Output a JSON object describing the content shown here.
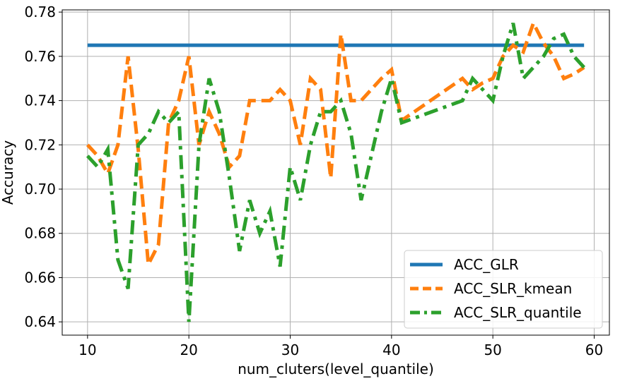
{
  "chart_data": {
    "type": "line",
    "xlabel": "num_cluters(level_quantile)",
    "ylabel": "Accuracy",
    "xlim": [
      7.5,
      61.5
    ],
    "ylim": [
      0.634,
      0.781
    ],
    "xticks": [
      10,
      20,
      30,
      40,
      50,
      60
    ],
    "yticks": [
      0.64,
      0.66,
      0.68,
      0.7,
      0.72,
      0.74,
      0.76,
      0.78
    ],
    "xtick_labels": [
      "10",
      "20",
      "30",
      "40",
      "50",
      "60"
    ],
    "ytick_labels": [
      "0.64",
      "0.66",
      "0.68",
      "0.70",
      "0.72",
      "0.74",
      "0.76",
      "0.78"
    ],
    "grid": true,
    "legend_position": "bottom-right",
    "series": [
      {
        "name": "ACC_GLR",
        "color": "#1f77b4",
        "style": "solid",
        "x": [
          10,
          59
        ],
        "y": [
          0.765,
          0.765
        ]
      },
      {
        "name": "ACC_SLR_kmean",
        "color": "#ff7f0e",
        "style": "dashed",
        "x": [
          10,
          11,
          12,
          13,
          14,
          15,
          16,
          17,
          18,
          19,
          20,
          21,
          22,
          23,
          24,
          25,
          26,
          27,
          28,
          29,
          30,
          31,
          32,
          33,
          34,
          35,
          36,
          37,
          38,
          39,
          40,
          41,
          47,
          48,
          49,
          50,
          51,
          52,
          53,
          54,
          55,
          56,
          57,
          58,
          59
        ],
        "y": [
          0.72,
          0.715,
          0.707,
          0.72,
          0.76,
          0.718,
          0.666,
          0.675,
          0.73,
          0.74,
          0.76,
          0.72,
          0.735,
          0.725,
          0.71,
          0.715,
          0.74,
          0.74,
          0.74,
          0.745,
          0.74,
          0.72,
          0.75,
          0.745,
          0.705,
          0.77,
          0.74,
          0.74,
          0.745,
          0.75,
          0.754,
          0.731,
          0.75,
          0.745,
          0.748,
          0.75,
          0.76,
          0.765,
          0.762,
          0.775,
          0.766,
          0.76,
          0.75,
          0.752,
          0.755
        ]
      },
      {
        "name": "ACC_SLR_quantile",
        "color": "#2ca02c",
        "style": "dashdot",
        "x": [
          10,
          11,
          12,
          13,
          14,
          15,
          16,
          17,
          18,
          19,
          20,
          21,
          22,
          23,
          24,
          25,
          26,
          27,
          28,
          29,
          30,
          31,
          32,
          33,
          34,
          35,
          36,
          37,
          38,
          39,
          40,
          41,
          47,
          48,
          49,
          50,
          51,
          52,
          53,
          54,
          55,
          56,
          57,
          58,
          59
        ],
        "y": [
          0.715,
          0.71,
          0.718,
          0.668,
          0.655,
          0.72,
          0.725,
          0.735,
          0.73,
          0.735,
          0.64,
          0.72,
          0.75,
          0.735,
          0.705,
          0.672,
          0.695,
          0.68,
          0.69,
          0.665,
          0.71,
          0.695,
          0.72,
          0.735,
          0.735,
          0.74,
          0.725,
          0.695,
          0.715,
          0.735,
          0.75,
          0.73,
          0.74,
          0.75,
          0.745,
          0.74,
          0.76,
          0.775,
          0.75,
          0.755,
          0.76,
          0.768,
          0.77,
          0.76,
          0.755
        ]
      }
    ]
  }
}
